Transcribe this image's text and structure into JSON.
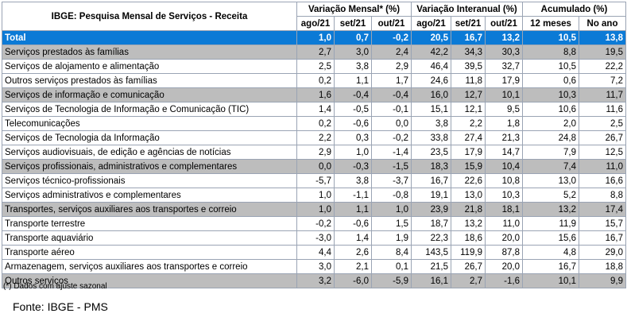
{
  "header": {
    "title": "IBGE: Pesquisa Mensal de Serviços - Receita",
    "groups": [
      "Variação Mensal* (%)",
      "Variação Interanual (%)",
      "Acumulado (%)"
    ],
    "subcols": [
      "ago/21",
      "set/21",
      "out/21",
      "ago/21",
      "set/21",
      "out/21",
      "12 meses",
      "No ano"
    ]
  },
  "rows": [
    {
      "label": "Total",
      "values": [
        "1,0",
        "0,7",
        "-0,2",
        "20,5",
        "16,7",
        "13,2",
        "10,5",
        "13,8"
      ]
    },
    {
      "label": "Serviços prestados às famílias",
      "values": [
        "2,7",
        "3,0",
        "2,4",
        "42,2",
        "34,3",
        "30,3",
        "8,8",
        "19,5"
      ]
    },
    {
      "label": "Serviços de alojamento e alimentação",
      "values": [
        "2,5",
        "3,8",
        "2,9",
        "46,4",
        "39,5",
        "32,7",
        "10,5",
        "22,2"
      ]
    },
    {
      "label": "Outros serviços prestados às famílias",
      "values": [
        "0,2",
        "1,1",
        "1,7",
        "24,6",
        "11,8",
        "17,9",
        "0,6",
        "7,2"
      ]
    },
    {
      "label": "Serviços de informação e comunicação",
      "values": [
        "1,6",
        "-0,4",
        "-0,4",
        "16,0",
        "12,7",
        "10,1",
        "10,3",
        "11,7"
      ]
    },
    {
      "label": "Serviços de Tecnologia de Informação e Comunicação (TIC)",
      "values": [
        "1,4",
        "-0,5",
        "-0,1",
        "15,1",
        "12,1",
        "9,5",
        "10,6",
        "11,6"
      ]
    },
    {
      "label": "Telecomunicações",
      "values": [
        "0,2",
        "-0,6",
        "0,0",
        "3,8",
        "2,2",
        "1,8",
        "2,0",
        "2,5"
      ]
    },
    {
      "label": "Serviços de Tecnologia da Informação",
      "values": [
        "2,2",
        "0,3",
        "-0,2",
        "33,8",
        "27,4",
        "21,3",
        "24,8",
        "26,7"
      ]
    },
    {
      "label": "Serviços audiovisuais, de edição e agências de notícias",
      "values": [
        "2,9",
        "1,0",
        "-1,4",
        "23,5",
        "17,9",
        "14,7",
        "7,9",
        "12,5"
      ]
    },
    {
      "label": "Serviços profissionais, administrativos e complementares",
      "values": [
        "0,0",
        "-0,3",
        "-1,5",
        "18,3",
        "15,9",
        "10,4",
        "7,4",
        "11,0"
      ]
    },
    {
      "label": "Serviços técnico-profissionais",
      "values": [
        "-5,7",
        "3,8",
        "-3,7",
        "16,7",
        "22,6",
        "10,8",
        "13,0",
        "16,6"
      ]
    },
    {
      "label": "Serviços administrativos e complementares",
      "values": [
        "1,0",
        "-1,1",
        "-0,8",
        "19,1",
        "13,0",
        "10,3",
        "5,2",
        "8,8"
      ]
    },
    {
      "label": "Transportes, serviços auxiliares aos transportes e correio",
      "values": [
        "1,0",
        "1,1",
        "1,0",
        "23,9",
        "21,8",
        "18,1",
        "13,2",
        "17,4"
      ]
    },
    {
      "label": "Transporte terrestre",
      "values": [
        "-0,2",
        "-0,6",
        "1,5",
        "18,7",
        "13,2",
        "11,0",
        "11,9",
        "15,7"
      ]
    },
    {
      "label": "Transporte aquaviário",
      "values": [
        "-3,0",
        "1,4",
        "1,9",
        "22,3",
        "18,6",
        "20,0",
        "15,6",
        "16,7"
      ]
    },
    {
      "label": "Transporte aéreo",
      "values": [
        "4,4",
        "2,6",
        "8,4",
        "143,5",
        "119,9",
        "87,8",
        "4,8",
        "29,0"
      ]
    },
    {
      "label": "Armazenagem, serviços auxiliares aos transportes e correio",
      "values": [
        "3,0",
        "2,1",
        "0,1",
        "21,5",
        "26,7",
        "20,0",
        "16,7",
        "18,8"
      ]
    },
    {
      "label": "Outros serviços",
      "values": [
        "3,2",
        "-6,0",
        "-5,9",
        "16,1",
        "2,7",
        "-1,6",
        "10,1",
        "9,9"
      ]
    }
  ],
  "footnote": "(*) Dados com ajuste sazonal",
  "source": "Fonte: IBGE - PMS",
  "colors": {
    "total_bg": "#0b7ad6",
    "section_bg": "#bdbdbd"
  }
}
